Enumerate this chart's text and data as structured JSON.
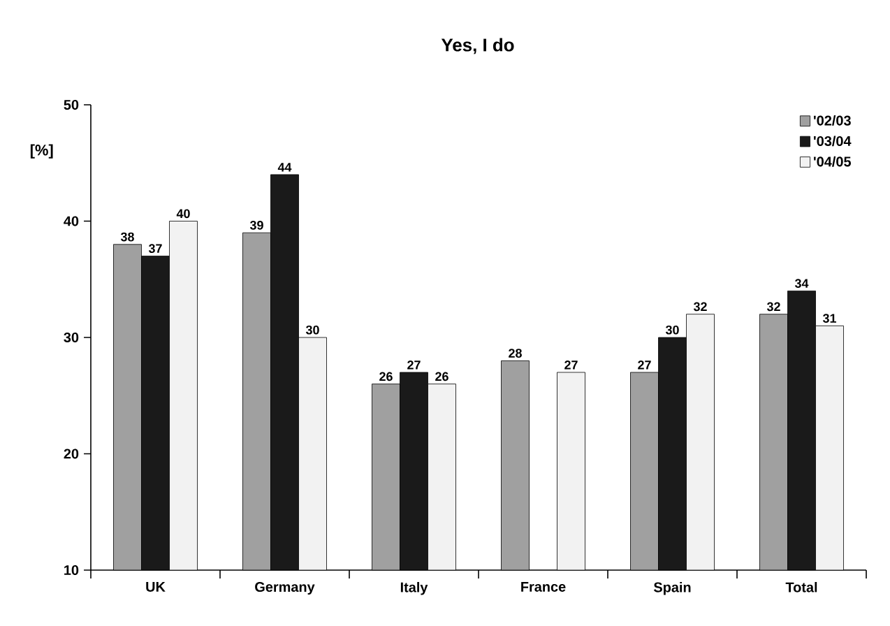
{
  "chart_data": {
    "type": "bar",
    "title": "Yes, I do",
    "ylabel": "[%]",
    "categories": [
      "UK",
      "Germany",
      "Italy",
      "France",
      "Spain",
      "Total"
    ],
    "series": [
      {
        "name": "'02/03",
        "color": "#a0a0a0",
        "values": [
          38,
          39,
          26,
          28,
          27,
          32
        ]
      },
      {
        "name": "'03/04",
        "color": "#1a1a1a",
        "values": [
          37,
          44,
          27,
          null,
          30,
          34
        ]
      },
      {
        "name": "'04/05",
        "color": "#f2f2f2",
        "values": [
          40,
          30,
          26,
          27,
          32,
          31
        ]
      }
    ],
    "ylim": [
      10,
      50
    ],
    "yticks": [
      10,
      20,
      30,
      40,
      50
    ],
    "data_labels": true,
    "legend": "top right",
    "grid": false
  }
}
